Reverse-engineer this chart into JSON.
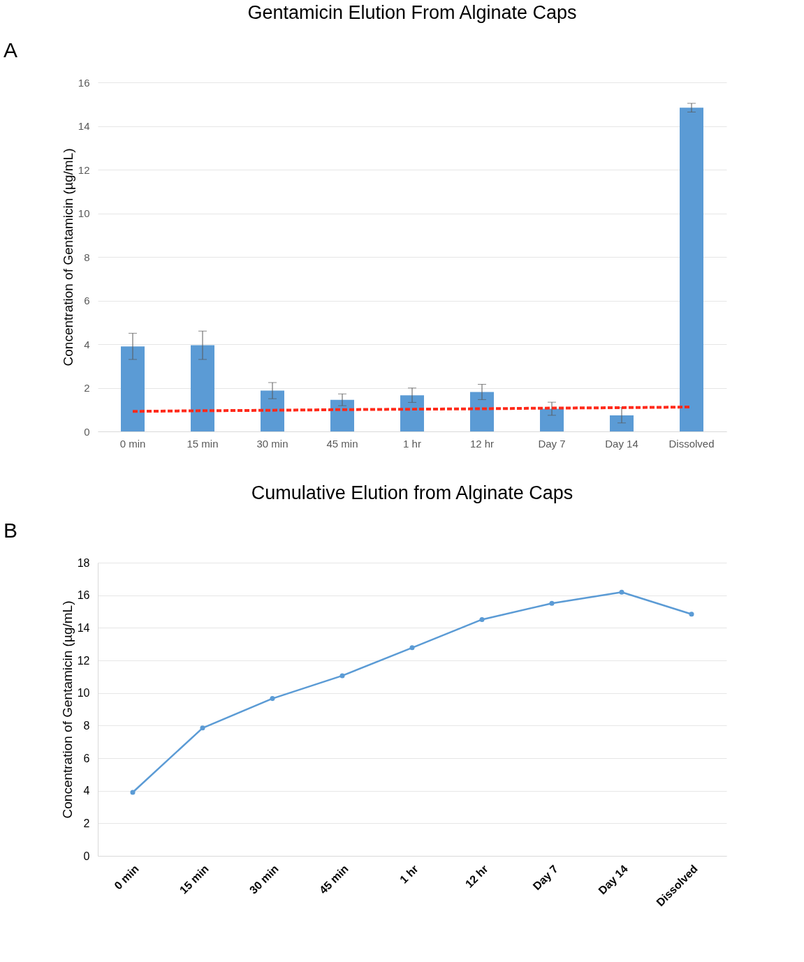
{
  "chart_data": [
    {
      "type": "bar",
      "title": "Gentamicin Elution From Alginate Caps",
      "ylabel": "Concentration of Gentamicin (µg/mL)",
      "annotations": [
        "A"
      ],
      "categories": [
        "0 min",
        "15 min",
        "30 min",
        "45 min",
        "1 hr",
        "12 hr",
        "Day 7",
        "Day 14",
        "Dissolved"
      ],
      "series": [
        {
          "color": "#5b9bd5",
          "values": [
            3.9,
            3.95,
            1.87,
            1.45,
            1.66,
            1.81,
            1.04,
            0.74,
            14.84
          ],
          "errors": [
            0.6,
            0.65,
            0.37,
            0.27,
            0.33,
            0.35,
            0.3,
            0.35,
            0.2
          ]
        },
        {
          "type": "line",
          "color": "#ff2a1a",
          "line_style": "dashed",
          "marker": "none",
          "values": [
            0.92,
            0.95,
            0.97,
            1.0,
            1.02,
            1.04,
            1.07,
            1.09,
            1.12
          ]
        }
      ],
      "ylim": [
        0,
        16
      ],
      "yticks": [
        0,
        2,
        4,
        6,
        8,
        10,
        12,
        14,
        16
      ],
      "grid": "y"
    },
    {
      "type": "line",
      "title": "Cumulative Elution from Alginate Caps",
      "ylabel": "Concentration of Gentamicin (µg/mL)",
      "annotations": [
        "B"
      ],
      "categories": [
        "0 min",
        "15 min",
        "30 min",
        "45 min",
        "1 hr",
        "12 hr",
        "Day 7",
        "Day 14",
        "Dissolved"
      ],
      "series": [
        {
          "color": "#5b9bd5",
          "line_style": "solid",
          "marker": "circle",
          "values": [
            3.9,
            7.85,
            9.66,
            11.06,
            12.78,
            14.51,
            15.5,
            16.19,
            14.84
          ]
        }
      ],
      "ylim": [
        0,
        18
      ],
      "yticks": [
        0,
        2,
        4,
        6,
        8,
        10,
        12,
        14,
        16,
        18
      ],
      "grid": "y"
    }
  ]
}
